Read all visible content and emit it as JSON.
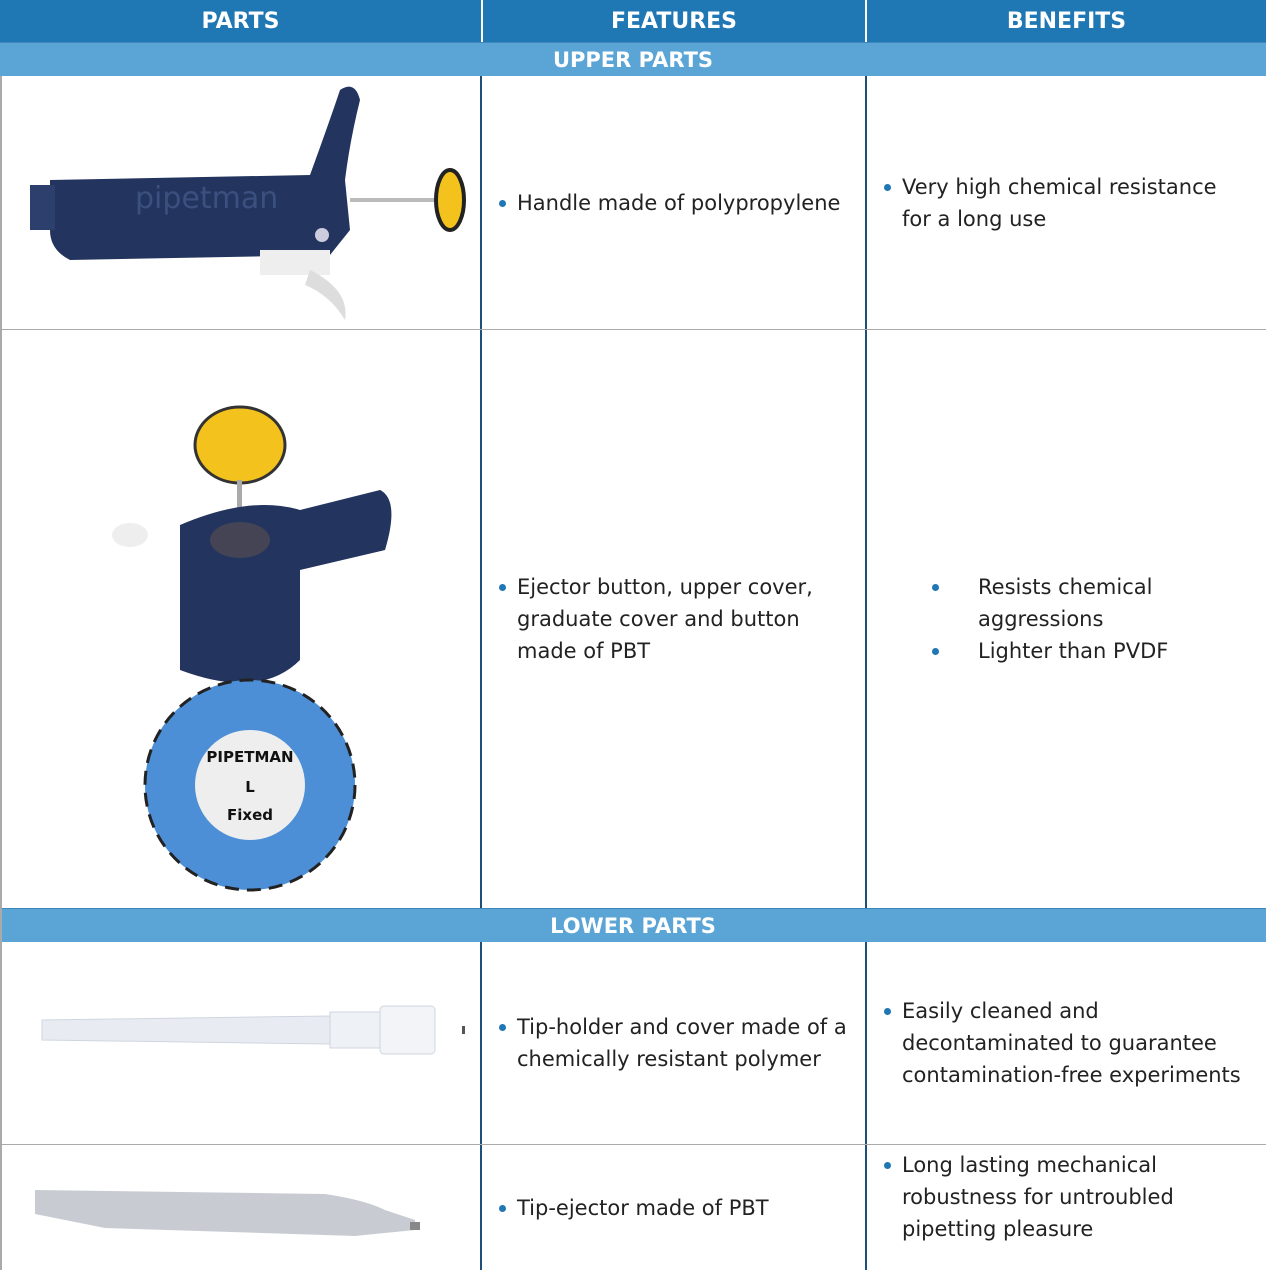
{
  "table": {
    "header": [
      "PARTS",
      "FEATURES",
      "BENEFITS"
    ],
    "sections": [
      {
        "title": "UPPER PARTS",
        "rows": [
          {
            "image_text": [
              "pipetman"
            ],
            "features": [
              "Handle made of polypropylene"
            ],
            "benefits": [
              "Very high chemical resistance for a long use"
            ]
          },
          {
            "image_text": [
              "PIPETMAN",
              "L",
              "Fixed"
            ],
            "features": [
              "Ejector button, upper cover, graduate cover  and button made of PBT"
            ],
            "benefits": [
              "Resists chemical aggressions",
              "Lighter than PVDF"
            ]
          }
        ]
      },
      {
        "title": "LOWER PARTS",
        "rows": [
          {
            "features": [
              "Tip-holder and cover made of a chemically resistant polymer"
            ],
            "benefits": [
              "Easily cleaned and decontaminated to guarantee contamination-free experiments"
            ]
          },
          {
            "features": [
              "Tip-ejector made of PBT"
            ],
            "benefits": [
              "Long lasting mechanical robustness for untroubled pipetting pleasure"
            ]
          }
        ]
      }
    ]
  }
}
